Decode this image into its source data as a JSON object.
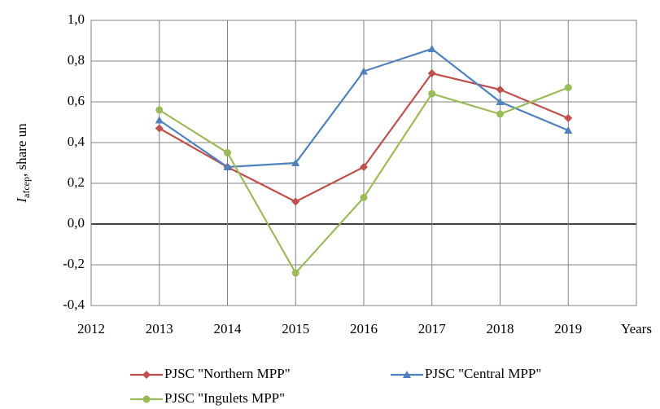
{
  "chart_data": {
    "type": "line",
    "ylabel": {
      "symbol": "I",
      "subscript": "afcep",
      "text": ", share un"
    },
    "xlabel": "Years",
    "x": [
      2013,
      2014,
      2015,
      2016,
      2017,
      2018,
      2019
    ],
    "series": [
      {
        "name": "PJSC \"Northern MPP\"",
        "color": "#c0504d",
        "marker": "diamond",
        "values": [
          0.47,
          0.28,
          0.11,
          0.28,
          0.74,
          0.66,
          0.52
        ]
      },
      {
        "name": "PJSC \"Central MPP\"",
        "color": "#4f81bd",
        "marker": "triangle",
        "values": [
          0.51,
          0.28,
          0.3,
          0.75,
          0.86,
          0.6,
          0.46
        ]
      },
      {
        "name": "PJSC \"Ingulets MPP\"",
        "color": "#9bbb59",
        "marker": "circle",
        "values": [
          0.56,
          0.35,
          -0.24,
          0.13,
          0.64,
          0.54,
          0.67
        ]
      }
    ],
    "xlim": [
      2012,
      2020
    ],
    "xticks": [
      2012,
      2013,
      2014,
      2015,
      2016,
      2017,
      2018,
      2019
    ],
    "ylim": [
      -0.4,
      1.0
    ],
    "yticks": [
      {
        "value": -0.4,
        "label": "-0,4"
      },
      {
        "value": -0.2,
        "label": "-0,2"
      },
      {
        "value": 0,
        "label": "0,0"
      },
      {
        "value": 0.2,
        "label": "0,2"
      },
      {
        "value": 0.4,
        "label": "0,4"
      },
      {
        "value": 0.6,
        "label": "0,6"
      },
      {
        "value": 0.8,
        "label": "0,8"
      },
      {
        "value": 1.0,
        "label": "1,0"
      }
    ],
    "grid": true,
    "legend": "bottom"
  }
}
